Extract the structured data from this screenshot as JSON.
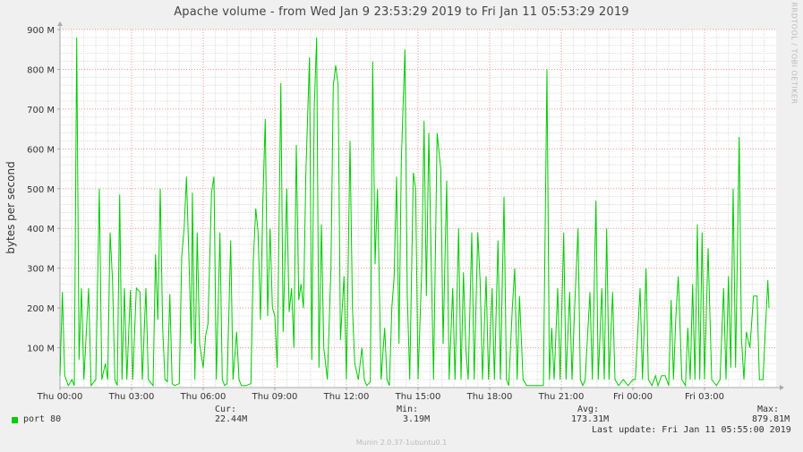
{
  "title": "Apache volume - from Wed Jan  9 23:53:29 2019 to Fri Jan 11 05:53:29 2019",
  "watermark": "RRDTOOL / TOBI OETIKER",
  "footer": "Munin 2.0.37-1ubuntu0.1",
  "legend": {
    "series_name": "port 80",
    "cur_label": "Cur:",
    "cur_value": "22.44M",
    "min_label": "Min:",
    "min_value": "3.19M",
    "avg_label": "Avg:",
    "avg_value": "173.31M",
    "max_label": "Max:",
    "max_value": "879.81M",
    "last_update": "Last update: Fri Jan 11 05:55:00 2019"
  },
  "colors": {
    "line": "#00cc00",
    "grid_major": "#ff9090",
    "grid_minor": "#dddddd",
    "plot_bg": "#ffffff",
    "page_bg": "#f0f0f0"
  },
  "chart_data": {
    "type": "line",
    "title": "Apache volume - from Wed Jan  9 23:53:29 2019 to Fri Jan 11 05:53:29 2019",
    "xlabel": "",
    "ylabel": "bytes per second",
    "xlim_hours": [
      0,
      30
    ],
    "ylim": [
      0,
      900
    ],
    "y_unit": "M",
    "x_ticks": [
      {
        "h": 0,
        "label": "Thu 00:00"
      },
      {
        "h": 3,
        "label": "Thu 03:00"
      },
      {
        "h": 6,
        "label": "Thu 06:00"
      },
      {
        "h": 9,
        "label": "Thu 09:00"
      },
      {
        "h": 12,
        "label": "Thu 12:00"
      },
      {
        "h": 15,
        "label": "Thu 15:00"
      },
      {
        "h": 18,
        "label": "Thu 18:00"
      },
      {
        "h": 21,
        "label": "Thu 21:00"
      },
      {
        "h": 24,
        "label": "Fri 00:00"
      },
      {
        "h": 27,
        "label": "Fri 03:00"
      }
    ],
    "y_ticks": [
      {
        "v": 100,
        "label": "100 M"
      },
      {
        "v": 200,
        "label": "200 M"
      },
      {
        "v": 300,
        "label": "300 M"
      },
      {
        "v": 400,
        "label": "400 M"
      },
      {
        "v": 500,
        "label": "500 M"
      },
      {
        "v": 600,
        "label": "600 M"
      },
      {
        "v": 700,
        "label": "700 M"
      },
      {
        "v": 800,
        "label": "800 M"
      },
      {
        "v": 900,
        "label": "900 M"
      }
    ],
    "grid": true,
    "series": [
      {
        "name": "port 80",
        "color": "#00cc00",
        "points": [
          [
            0.0,
            30
          ],
          [
            0.1,
            240
          ],
          [
            0.2,
            30
          ],
          [
            0.35,
            5
          ],
          [
            0.5,
            20
          ],
          [
            0.6,
            5
          ],
          [
            0.7,
            880
          ],
          [
            0.8,
            70
          ],
          [
            0.9,
            250
          ],
          [
            1.0,
            20
          ],
          [
            1.2,
            250
          ],
          [
            1.3,
            5
          ],
          [
            1.5,
            20
          ],
          [
            1.65,
            500
          ],
          [
            1.75,
            20
          ],
          [
            1.9,
            60
          ],
          [
            2.0,
            20
          ],
          [
            2.1,
            390
          ],
          [
            2.2,
            270
          ],
          [
            2.3,
            20
          ],
          [
            2.4,
            5
          ],
          [
            2.5,
            485
          ],
          [
            2.6,
            20
          ],
          [
            2.7,
            250
          ],
          [
            2.8,
            20
          ],
          [
            2.95,
            245
          ],
          [
            3.05,
            20
          ],
          [
            3.2,
            250
          ],
          [
            3.35,
            240
          ],
          [
            3.45,
            20
          ],
          [
            3.6,
            250
          ],
          [
            3.7,
            20
          ],
          [
            3.9,
            5
          ],
          [
            4.0,
            335
          ],
          [
            4.1,
            170
          ],
          [
            4.2,
            500
          ],
          [
            4.3,
            150
          ],
          [
            4.4,
            20
          ],
          [
            4.5,
            15
          ],
          [
            4.6,
            235
          ],
          [
            4.7,
            10
          ],
          [
            4.8,
            5
          ],
          [
            5.0,
            10
          ],
          [
            5.1,
            330
          ],
          [
            5.2,
            400
          ],
          [
            5.3,
            530
          ],
          [
            5.4,
            330
          ],
          [
            5.5,
            110
          ],
          [
            5.55,
            490
          ],
          [
            5.65,
            20
          ],
          [
            5.75,
            390
          ],
          [
            5.85,
            110
          ],
          [
            6.0,
            50
          ],
          [
            6.1,
            130
          ],
          [
            6.2,
            160
          ],
          [
            6.35,
            490
          ],
          [
            6.45,
            530
          ],
          [
            6.55,
            20
          ],
          [
            6.7,
            390
          ],
          [
            6.8,
            20
          ],
          [
            6.9,
            5
          ],
          [
            7.0,
            10
          ],
          [
            7.15,
            370
          ],
          [
            7.25,
            20
          ],
          [
            7.4,
            140
          ],
          [
            7.5,
            20
          ],
          [
            7.6,
            5
          ],
          [
            7.8,
            5
          ],
          [
            8.0,
            10
          ],
          [
            8.1,
            320
          ],
          [
            8.2,
            450
          ],
          [
            8.3,
            390
          ],
          [
            8.4,
            170
          ],
          [
            8.5,
            470
          ],
          [
            8.6,
            675
          ],
          [
            8.7,
            180
          ],
          [
            8.8,
            400
          ],
          [
            8.9,
            200
          ],
          [
            9.0,
            180
          ],
          [
            9.1,
            50
          ],
          [
            9.25,
            765
          ],
          [
            9.35,
            140
          ],
          [
            9.5,
            500
          ],
          [
            9.6,
            190
          ],
          [
            9.7,
            250
          ],
          [
            9.8,
            100
          ],
          [
            9.9,
            610
          ],
          [
            10.0,
            220
          ],
          [
            10.1,
            260
          ],
          [
            10.2,
            200
          ],
          [
            10.3,
            540
          ],
          [
            10.45,
            830
          ],
          [
            10.55,
            70
          ],
          [
            10.65,
            700
          ],
          [
            10.75,
            880
          ],
          [
            10.85,
            50
          ],
          [
            10.95,
            410
          ],
          [
            11.05,
            100
          ],
          [
            11.2,
            20
          ],
          [
            11.35,
            300
          ],
          [
            11.45,
            760
          ],
          [
            11.55,
            810
          ],
          [
            11.65,
            760
          ],
          [
            11.75,
            120
          ],
          [
            11.9,
            280
          ],
          [
            12.0,
            20
          ],
          [
            12.15,
            620
          ],
          [
            12.25,
            200
          ],
          [
            12.35,
            60
          ],
          [
            12.5,
            20
          ],
          [
            12.65,
            100
          ],
          [
            12.75,
            20
          ],
          [
            12.85,
            5
          ],
          [
            13.0,
            15
          ],
          [
            13.1,
            820
          ],
          [
            13.2,
            310
          ],
          [
            13.3,
            500
          ],
          [
            13.45,
            20
          ],
          [
            13.6,
            150
          ],
          [
            13.7,
            20
          ],
          [
            13.8,
            5
          ],
          [
            13.9,
            200
          ],
          [
            14.0,
            280
          ],
          [
            14.1,
            530
          ],
          [
            14.2,
            110
          ],
          [
            14.3,
            570
          ],
          [
            14.45,
            850
          ],
          [
            14.55,
            230
          ],
          [
            14.65,
            20
          ],
          [
            14.8,
            540
          ],
          [
            14.9,
            500
          ],
          [
            15.0,
            20
          ],
          [
            15.15,
            290
          ],
          [
            15.25,
            670
          ],
          [
            15.35,
            230
          ],
          [
            15.45,
            640
          ],
          [
            15.55,
            320
          ],
          [
            15.65,
            20
          ],
          [
            15.8,
            640
          ],
          [
            15.95,
            550
          ],
          [
            16.05,
            110
          ],
          [
            16.2,
            520
          ],
          [
            16.3,
            20
          ],
          [
            16.45,
            250
          ],
          [
            16.55,
            20
          ],
          [
            16.7,
            400
          ],
          [
            16.8,
            20
          ],
          [
            16.9,
            290
          ],
          [
            17.0,
            100
          ],
          [
            17.1,
            20
          ],
          [
            17.25,
            390
          ],
          [
            17.35,
            20
          ],
          [
            17.5,
            390
          ],
          [
            17.6,
            270
          ],
          [
            17.7,
            20
          ],
          [
            17.85,
            280
          ],
          [
            17.95,
            20
          ],
          [
            18.1,
            250
          ],
          [
            18.2,
            20
          ],
          [
            18.35,
            370
          ],
          [
            18.45,
            20
          ],
          [
            18.6,
            480
          ],
          [
            18.7,
            20
          ],
          [
            18.8,
            5
          ],
          [
            18.95,
            200
          ],
          [
            19.05,
            300
          ],
          [
            19.15,
            20
          ],
          [
            19.25,
            230
          ],
          [
            19.4,
            20
          ],
          [
            19.55,
            5
          ],
          [
            20.0,
            5
          ],
          [
            20.25,
            5
          ],
          [
            20.4,
            800
          ],
          [
            20.5,
            20
          ],
          [
            20.6,
            150
          ],
          [
            20.7,
            20
          ],
          [
            20.85,
            250
          ],
          [
            20.95,
            20
          ],
          [
            21.1,
            390
          ],
          [
            21.2,
            20
          ],
          [
            21.35,
            240
          ],
          [
            21.45,
            20
          ],
          [
            21.55,
            190
          ],
          [
            21.7,
            400
          ],
          [
            21.8,
            20
          ],
          [
            21.9,
            5
          ],
          [
            22.0,
            20
          ],
          [
            22.2,
            240
          ],
          [
            22.3,
            20
          ],
          [
            22.45,
            470
          ],
          [
            22.55,
            20
          ],
          [
            22.7,
            250
          ],
          [
            22.8,
            20
          ],
          [
            22.9,
            400
          ],
          [
            23.0,
            20
          ],
          [
            23.15,
            240
          ],
          [
            23.25,
            20
          ],
          [
            23.4,
            5
          ],
          [
            23.6,
            20
          ],
          [
            23.8,
            5
          ],
          [
            24.0,
            20
          ],
          [
            24.1,
            20
          ],
          [
            24.3,
            250
          ],
          [
            24.4,
            20
          ],
          [
            24.55,
            300
          ],
          [
            24.65,
            20
          ],
          [
            24.8,
            5
          ],
          [
            24.95,
            30
          ],
          [
            25.05,
            5
          ],
          [
            25.2,
            30
          ],
          [
            25.35,
            30
          ],
          [
            25.5,
            5
          ],
          [
            25.6,
            220
          ],
          [
            25.7,
            20
          ],
          [
            25.8,
            180
          ],
          [
            25.9,
            280
          ],
          [
            26.05,
            20
          ],
          [
            26.2,
            5
          ],
          [
            26.3,
            150
          ],
          [
            26.4,
            20
          ],
          [
            26.5,
            260
          ],
          [
            26.6,
            20
          ],
          [
            26.7,
            410
          ],
          [
            26.8,
            20
          ],
          [
            26.9,
            390
          ],
          [
            27.0,
            20
          ],
          [
            27.15,
            350
          ],
          [
            27.3,
            20
          ],
          [
            27.5,
            5
          ],
          [
            27.65,
            20
          ],
          [
            27.8,
            250
          ],
          [
            27.9,
            20
          ],
          [
            28.0,
            280
          ],
          [
            28.1,
            50
          ],
          [
            28.2,
            500
          ],
          [
            28.3,
            50
          ],
          [
            28.45,
            630
          ],
          [
            28.55,
            120
          ],
          [
            28.65,
            20
          ],
          [
            28.75,
            140
          ],
          [
            28.9,
            100
          ],
          [
            29.05,
            230
          ],
          [
            29.2,
            230
          ],
          [
            29.3,
            20
          ],
          [
            29.45,
            20
          ],
          [
            29.65,
            270
          ],
          [
            29.7,
            200
          ]
        ]
      }
    ]
  }
}
